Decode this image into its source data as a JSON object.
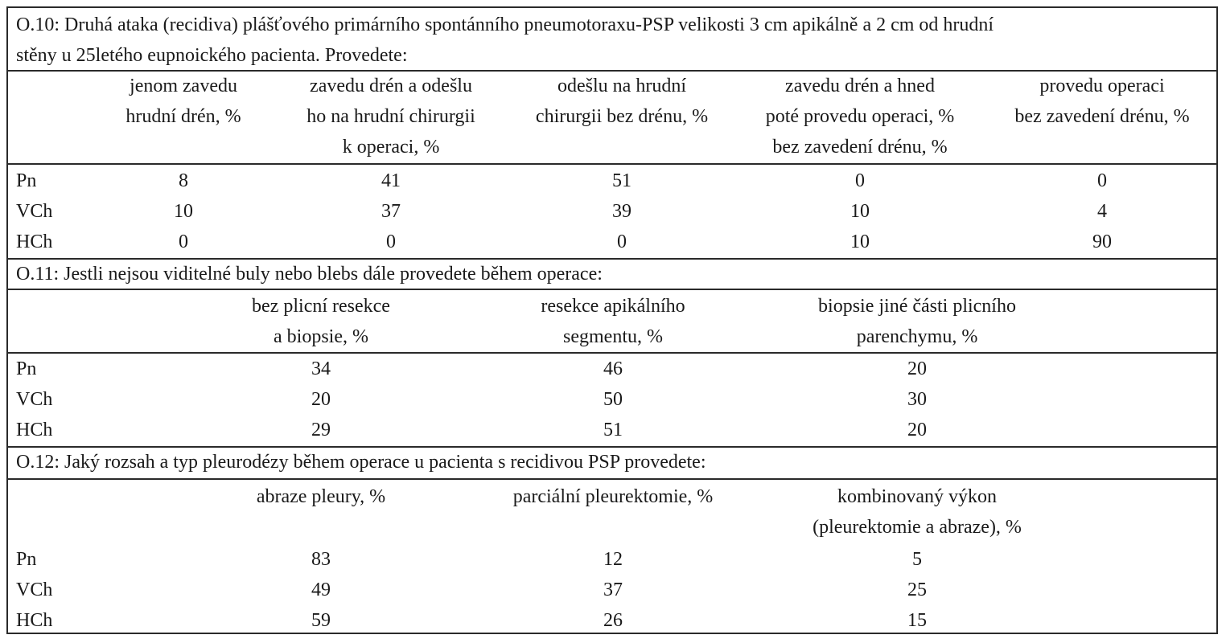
{
  "sections": [
    {
      "question_lines": [
        "O.10: Druhá ataka (recidiva) plášťového primárního spontánního pneumotoraxu-PSP velikosti 3 cm apikálně a 2 cm od hrudní",
        "stěny u 25letého eupnoického pacienta. Provedete:"
      ],
      "headers": [
        [
          "jenom zavedu",
          "hrudní drén, %"
        ],
        [
          "zavedu drén a odešlu",
          "ho na hrudní chirurgii",
          "k operaci, %"
        ],
        [
          "odešlu na hrudní",
          "chirurgii bez drénu, %"
        ],
        [
          "zavedu drén a hned",
          "poté provedu operaci, %",
          "bez zavedení drénu, %"
        ],
        [
          "provedu operaci",
          "bez zavedení drénu, %"
        ]
      ],
      "rows": [
        {
          "label": "Pn",
          "values": [
            "8",
            "41",
            "51",
            "0",
            "0"
          ]
        },
        {
          "label": "VCh",
          "values": [
            "10",
            "37",
            "39",
            "10",
            "4"
          ]
        },
        {
          "label": "HCh",
          "values": [
            "0",
            "0",
            "0",
            "10",
            "90"
          ]
        }
      ]
    },
    {
      "question_lines": [
        "O.11: Jestli nejsou viditelné buly nebo blebs dále provedete během operace:"
      ],
      "headers": [
        [
          "bez plicní resekce",
          "a biopsie, %"
        ],
        [
          "resekce apikálního",
          "segmentu, %"
        ],
        [
          "biopsie jiné části plicního",
          "parenchymu, %"
        ]
      ],
      "rows": [
        {
          "label": "Pn",
          "values": [
            "34",
            "46",
            "20"
          ]
        },
        {
          "label": "VCh",
          "values": [
            "20",
            "50",
            "30"
          ]
        },
        {
          "label": "HCh",
          "values": [
            "29",
            "51",
            "20"
          ]
        }
      ]
    },
    {
      "question_lines": [
        "O.12: Jaký rozsah a typ pleurodézy během operace u pacienta s recidivou PSP provedete:"
      ],
      "headers": [
        [
          "abraze pleury, %"
        ],
        [
          "parciální pleurektomie, %"
        ],
        [
          "kombinovaný výkon",
          "(pleurektomie a abraze), %"
        ]
      ],
      "rows": [
        {
          "label": "Pn",
          "values": [
            "83",
            "12",
            "5"
          ]
        },
        {
          "label": "VCh",
          "values": [
            "49",
            "37",
            "25"
          ]
        },
        {
          "label": "HCh",
          "values": [
            "59",
            "26",
            "15"
          ]
        }
      ]
    }
  ]
}
